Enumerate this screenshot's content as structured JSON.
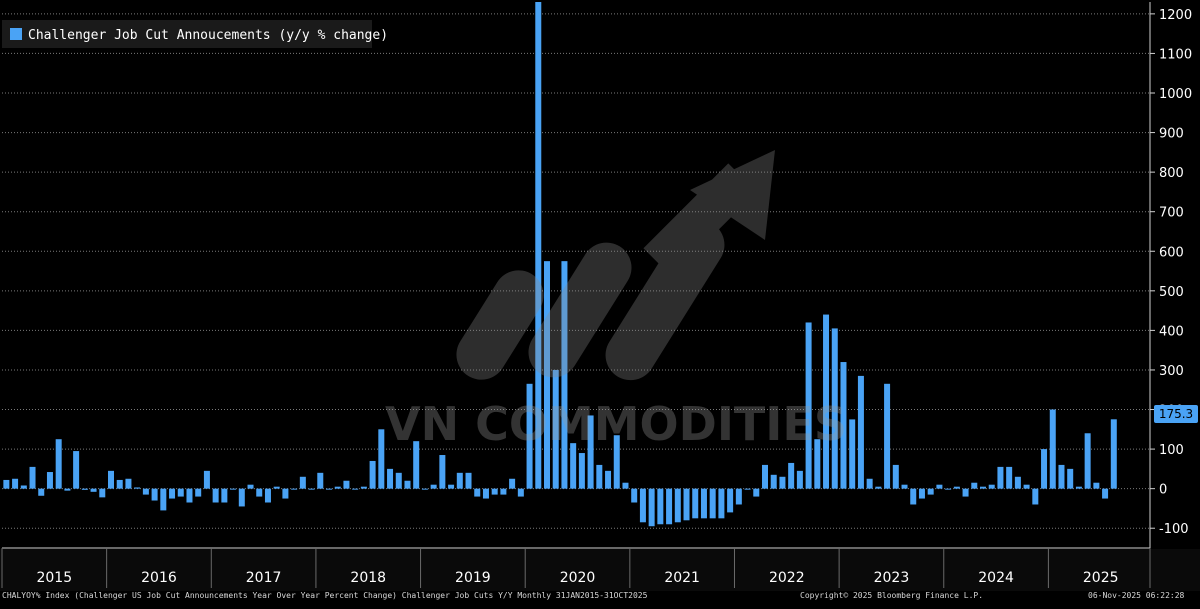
{
  "chart_data": {
    "type": "bar",
    "legend": "Challenger Job Cut Annoucements (y/y % change)",
    "legend_position": "top-left",
    "series_color": "#4aa3f5",
    "ylim": [
      -150,
      1230
    ],
    "y_ticks": [
      -100,
      0,
      100,
      200,
      300,
      400,
      500,
      600,
      700,
      800,
      900,
      1000,
      1100,
      1200
    ],
    "y_tick_labels": [
      "-100",
      "0",
      "100",
      "200",
      "300",
      "400",
      "500",
      "600",
      "700",
      "800",
      "900",
      "1000",
      "1100",
      "1200"
    ],
    "year_labels": [
      "2015",
      "2016",
      "2017",
      "2018",
      "2019",
      "2020",
      "2021",
      "2022",
      "2023",
      "2024",
      "2025"
    ],
    "last_value_label": "175.3",
    "x_start": "2015-01",
    "values": [
      22,
      25,
      8,
      55,
      -18,
      42,
      125,
      -5,
      95,
      -3,
      -8,
      -22,
      45,
      22,
      25,
      3,
      -15,
      -30,
      -55,
      -25,
      -20,
      -35,
      -20,
      45,
      -35,
      -35,
      0,
      -45,
      10,
      -20,
      -35,
      5,
      -25,
      0,
      30,
      0,
      40,
      0,
      5,
      20,
      0,
      5,
      70,
      150,
      50,
      40,
      20,
      120,
      0,
      10,
      85,
      10,
      40,
      40,
      -20,
      -25,
      -15,
      -15,
      25,
      -20,
      265,
      1230,
      575,
      300,
      575,
      115,
      90,
      185,
      60,
      45,
      135,
      15,
      -35,
      -85,
      -95,
      -90,
      -90,
      -85,
      -80,
      -75,
      -75,
      -75,
      -75,
      -60,
      -40,
      0,
      -20,
      60,
      35,
      30,
      65,
      45,
      420,
      125,
      440,
      405,
      320,
      175,
      285,
      25,
      5,
      265,
      60,
      10,
      -40,
      -25,
      -15,
      10,
      0,
      5,
      -20,
      15,
      5,
      10,
      55,
      55,
      30,
      10,
      -40,
      100,
      200,
      60,
      50,
      5,
      140,
      15,
      -25,
      175.3
    ]
  },
  "watermark": {
    "text": "VN COMMODITIES"
  },
  "footer": {
    "left": "CHALYOY% Index (Challenger US Job Cut Announcements Year Over Year Percent Change) Challenger Job Cuts Y/Y Monthly 31JAN2015-31OCT2025",
    "mid": "Copyright© 2025 Bloomberg Finance L.P.",
    "right": "06-Nov-2025 06:22:28"
  }
}
